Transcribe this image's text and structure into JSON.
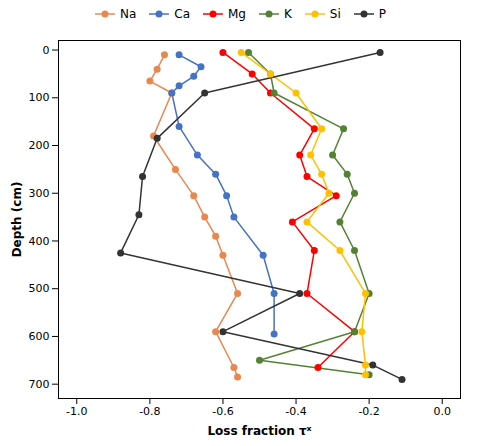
{
  "chart_data": {
    "type": "line",
    "xlabel": "Loss fraction τˣ",
    "ylabel": "Depth (cm)",
    "xlim": [
      -1.05,
      0.05
    ],
    "ylim": [
      730,
      -20
    ],
    "xticks": [
      {
        "value": -1.0,
        "label": "-1.0"
      },
      {
        "value": -0.8,
        "label": "-0.8"
      },
      {
        "value": -0.6,
        "label": "-0.6"
      },
      {
        "value": -0.4,
        "label": "-0.4"
      },
      {
        "value": -0.2,
        "label": "-0.2"
      },
      {
        "value": 0.0,
        "label": "0.0"
      }
    ],
    "yticks": [
      0,
      100,
      200,
      300,
      400,
      500,
      600,
      700
    ],
    "grid": false,
    "legend": "top",
    "marker": "circle",
    "line_style": "solid",
    "series": [
      {
        "name": "Na",
        "color": "#E8884F",
        "x": [
          -0.76,
          -0.78,
          -0.8,
          -0.74,
          -0.79,
          -0.73,
          -0.68,
          -0.65,
          -0.62,
          -0.6,
          -0.56,
          -0.62,
          -0.57,
          -0.56
        ],
        "values": [
          10,
          40,
          65,
          90,
          180,
          250,
          305,
          350,
          390,
          430,
          510,
          590,
          665,
          685
        ]
      },
      {
        "name": "Ca",
        "color": "#4472C4",
        "x": [
          -0.72,
          -0.66,
          -0.68,
          -0.72,
          -0.74,
          -0.72,
          -0.67,
          -0.62,
          -0.59,
          -0.57,
          -0.49,
          -0.46,
          -0.46
        ],
        "values": [
          10,
          35,
          55,
          75,
          90,
          160,
          220,
          260,
          305,
          350,
          430,
          510,
          595
        ]
      },
      {
        "name": "Mg",
        "color": "#FF0000",
        "x": [
          -0.6,
          -0.52,
          -0.47,
          -0.35,
          -0.39,
          -0.37,
          -0.29,
          -0.41,
          -0.35,
          -0.37,
          -0.24,
          -0.34
        ],
        "values": [
          5,
          50,
          90,
          165,
          220,
          265,
          305,
          360,
          420,
          510,
          590,
          665
        ]
      },
      {
        "name": "K",
        "color": "#548235",
        "x": [
          -0.53,
          -0.47,
          -0.46,
          -0.27,
          -0.3,
          -0.26,
          -0.24,
          -0.28,
          -0.24,
          -0.2,
          -0.24,
          -0.5,
          -0.2
        ],
        "values": [
          5,
          50,
          90,
          165,
          220,
          260,
          300,
          360,
          420,
          510,
          590,
          650,
          680
        ]
      },
      {
        "name": "Si",
        "color": "#FFC000",
        "x": [
          -0.55,
          -0.47,
          -0.4,
          -0.33,
          -0.36,
          -0.33,
          -0.31,
          -0.37,
          -0.28,
          -0.21,
          -0.22,
          -0.21,
          -0.21
        ],
        "values": [
          5,
          50,
          90,
          165,
          220,
          260,
          300,
          360,
          420,
          510,
          590,
          660,
          680
        ]
      },
      {
        "name": "P",
        "color": "#333333",
        "x": [
          -0.17,
          -0.65,
          -0.78,
          -0.82,
          -0.83,
          -0.88,
          -0.39,
          -0.6,
          -0.19,
          -0.11
        ],
        "values": [
          5,
          90,
          185,
          265,
          345,
          425,
          510,
          590,
          660,
          690
        ]
      }
    ]
  }
}
